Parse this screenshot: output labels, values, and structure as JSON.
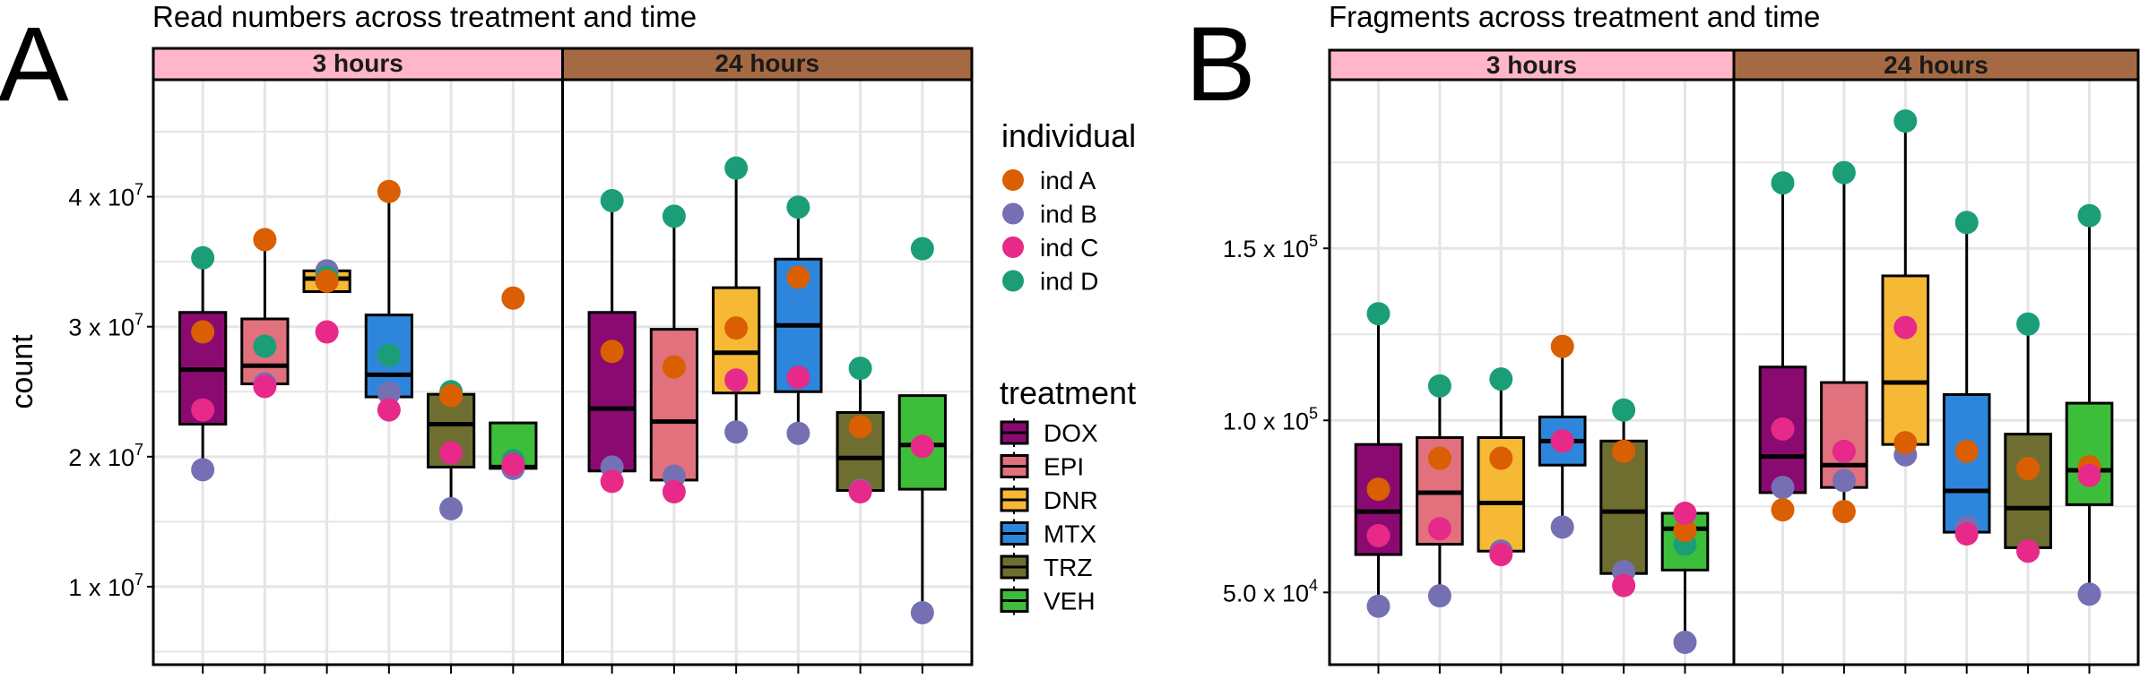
{
  "colors": {
    "DOX": "#8B0A72",
    "EPI": "#E2717E",
    "DNR": "#F5B935",
    "MTX": "#2D86DC",
    "TRZ": "#6E6E30",
    "VEH": "#3DBE3A",
    "ind A": "#D95F02",
    "ind B": "#7570B3",
    "ind C": "#E7298A",
    "ind D": "#1B9E77",
    "strip_3h": "#FFB6C8",
    "strip_24h": "#A56A43",
    "grid": "#E5E5E5"
  },
  "panels": [
    {
      "letter": "A",
      "title": "Read numbers across treatment and time",
      "ylabel": "count"
    },
    {
      "letter": "B",
      "title": "Fragments across treatment and time",
      "ylabel": ""
    }
  ],
  "legend": {
    "individual_title": "individual",
    "individuals": [
      "ind A",
      "ind B",
      "ind C",
      "ind D"
    ],
    "treatment_title": "treatment",
    "treatments": [
      "DOX",
      "EPI",
      "DNR",
      "MTX",
      "TRZ",
      "VEH"
    ]
  },
  "chart_data": [
    {
      "type": "box",
      "title": "Read numbers across treatment and time",
      "ylabel": "count",
      "ylim": [
        4000000,
        49000000
      ],
      "yticks": [
        {
          "value": 10000000,
          "mant": "1 x 10",
          "exp": "7"
        },
        {
          "value": 20000000,
          "mant": "2 x 10",
          "exp": "7"
        },
        {
          "value": 30000000,
          "mant": "3 x 10",
          "exp": "7"
        },
        {
          "value": 40000000,
          "mant": "4 x 10",
          "exp": "7"
        }
      ],
      "facets": [
        "3 hours",
        "24 hours"
      ],
      "treatments": [
        "DOX",
        "EPI",
        "DNR",
        "MTX",
        "TRZ",
        "VEH"
      ],
      "groups": [
        {
          "facet": "3 hours",
          "treatment": "DOX",
          "box": [
            19000000,
            22500000,
            26700000,
            31100000,
            35300000
          ],
          "points": {
            "ind A": 29600000,
            "ind B": 19000000,
            "ind C": 23600000,
            "ind D": 35300000
          }
        },
        {
          "facet": "3 hours",
          "treatment": "EPI",
          "box": [
            25400000,
            25600000,
            27000000,
            30600000,
            36700000
          ],
          "points": {
            "ind A": 36700000,
            "ind B": 25600000,
            "ind C": 25400000,
            "ind D": 28500000
          }
        },
        {
          "facet": "3 hours",
          "treatment": "DNR",
          "box": [
            32700000,
            32700000,
            33700000,
            34300000,
            34300000
          ],
          "points": {
            "ind A": 33500000,
            "ind B": 34300000,
            "ind C": 29600000,
            "ind D": 33800000
          }
        },
        {
          "facet": "3 hours",
          "treatment": "MTX",
          "box": [
            23600000,
            24600000,
            26300000,
            30900000,
            40400000
          ],
          "points": {
            "ind A": 40400000,
            "ind B": 24900000,
            "ind C": 23600000,
            "ind D": 27800000
          }
        },
        {
          "facet": "3 hours",
          "treatment": "TRZ",
          "box": [
            16000000,
            19200000,
            22500000,
            24800000,
            25000000
          ],
          "points": {
            "ind A": 24700000,
            "ind B": 16000000,
            "ind C": 20300000,
            "ind D": 25000000
          }
        },
        {
          "facet": "3 hours",
          "treatment": "VEH",
          "box": [
            19100000,
            19100000,
            19200000,
            22600000,
            22600000
          ],
          "points": {
            "ind A": 32200000,
            "ind B": 19100000,
            "ind C": 19400000,
            "ind D": 19700000
          }
        },
        {
          "facet": "24 hours",
          "treatment": "DOX",
          "box": [
            18100000,
            18900000,
            23700000,
            31100000,
            39700000
          ],
          "points": {
            "ind A": 28100000,
            "ind B": 19200000,
            "ind C": 18100000,
            "ind D": 39700000
          }
        },
        {
          "facet": "24 hours",
          "treatment": "EPI",
          "box": [
            17300000,
            18200000,
            22700000,
            29800000,
            38500000
          ],
          "points": {
            "ind A": 26900000,
            "ind B": 18500000,
            "ind C": 17300000,
            "ind D": 38500000
          }
        },
        {
          "facet": "24 hours",
          "treatment": "DNR",
          "box": [
            21900000,
            24900000,
            28000000,
            33000000,
            42200000
          ],
          "points": {
            "ind A": 29900000,
            "ind B": 21900000,
            "ind C": 25900000,
            "ind D": 42200000
          }
        },
        {
          "facet": "24 hours",
          "treatment": "MTX",
          "box": [
            21800000,
            25000000,
            30100000,
            35200000,
            39200000
          ],
          "points": {
            "ind A": 33800000,
            "ind B": 21800000,
            "ind C": 26100000,
            "ind D": 39200000
          }
        },
        {
          "facet": "24 hours",
          "treatment": "TRZ",
          "box": [
            17300000,
            17400000,
            19900000,
            23400000,
            26800000
          ],
          "points": {
            "ind A": 22300000,
            "ind B": 17400000,
            "ind C": 17300000,
            "ind D": 26800000
          }
        },
        {
          "facet": "24 hours",
          "treatment": "VEH",
          "box": [
            8000000,
            17500000,
            20900000,
            24700000,
            24700000
          ],
          "points": {
            "ind A": 20800000,
            "ind B": 8000000,
            "ind C": 20800000,
            "ind D": 36000000
          }
        }
      ]
    },
    {
      "type": "box",
      "title": "Fragments across treatment and time",
      "ylabel": "",
      "ylim": [
        29000,
        199000
      ],
      "yticks": [
        {
          "value": 50000,
          "mant": "5.0 x 10",
          "exp": "4"
        },
        {
          "value": 100000,
          "mant": "1.0 x 10",
          "exp": "5"
        },
        {
          "value": 150000,
          "mant": "1.5 x 10",
          "exp": "5"
        }
      ],
      "facets": [
        "3 hours",
        "24 hours"
      ],
      "treatments": [
        "DOX",
        "EPI",
        "DNR",
        "MTX",
        "TRZ",
        "VEH"
      ],
      "groups": [
        {
          "facet": "3 hours",
          "treatment": "DOX",
          "box": [
            46000,
            61000,
            73500,
            93000,
            131000
          ],
          "points": {
            "ind A": 80000,
            "ind B": 46000,
            "ind C": 66500,
            "ind D": 131000
          }
        },
        {
          "facet": "3 hours",
          "treatment": "EPI",
          "box": [
            49000,
            64000,
            79000,
            95000,
            110000
          ],
          "points": {
            "ind A": 89000,
            "ind B": 49000,
            "ind C": 68500,
            "ind D": 110000
          }
        },
        {
          "facet": "3 hours",
          "treatment": "DNR",
          "box": [
            61000,
            62000,
            76000,
            95000,
            112000
          ],
          "points": {
            "ind A": 89000,
            "ind B": 62000,
            "ind C": 61000,
            "ind D": 112000
          }
        },
        {
          "facet": "3 hours",
          "treatment": "MTX",
          "box": [
            69000,
            87000,
            94000,
            101000,
            121500
          ],
          "points": {
            "ind A": 121500,
            "ind B": 69000,
            "ind C": 94000,
            "ind D": 94000
          }
        },
        {
          "facet": "3 hours",
          "treatment": "TRZ",
          "box": [
            52000,
            55500,
            73500,
            94000,
            103000
          ],
          "points": {
            "ind A": 91000,
            "ind B": 56000,
            "ind C": 52000,
            "ind D": 103000
          }
        },
        {
          "facet": "3 hours",
          "treatment": "VEH",
          "box": [
            35500,
            56500,
            68500,
            73000,
            73000
          ],
          "points": {
            "ind A": 68000,
            "ind B": 35500,
            "ind C": 73000,
            "ind D": 64000
          }
        },
        {
          "facet": "24 hours",
          "treatment": "DOX",
          "box": [
            74000,
            79000,
            89500,
            115500,
            169000
          ],
          "points": {
            "ind A": 74000,
            "ind B": 80500,
            "ind C": 97500,
            "ind D": 169000
          }
        },
        {
          "facet": "24 hours",
          "treatment": "EPI",
          "box": [
            73500,
            80500,
            87000,
            111000,
            172000
          ],
          "points": {
            "ind A": 73500,
            "ind B": 82500,
            "ind C": 91000,
            "ind D": 172000
          }
        },
        {
          "facet": "24 hours",
          "treatment": "DNR",
          "box": [
            90000,
            93000,
            111000,
            142000,
            187000
          ],
          "points": {
            "ind A": 93500,
            "ind B": 90000,
            "ind C": 127000,
            "ind D": 187000
          }
        },
        {
          "facet": "24 hours",
          "treatment": "MTX",
          "box": [
            67000,
            67500,
            79500,
            107500,
            157500
          ],
          "points": {
            "ind A": 91000,
            "ind B": 69000,
            "ind C": 67000,
            "ind D": 157500
          }
        },
        {
          "facet": "24 hours",
          "treatment": "TRZ",
          "box": [
            62000,
            63000,
            74500,
            96000,
            128000
          ],
          "points": {
            "ind A": 86000,
            "ind B": 62000,
            "ind C": 62000,
            "ind D": 128000
          }
        },
        {
          "facet": "24 hours",
          "treatment": "VEH",
          "box": [
            49500,
            75500,
            85500,
            105000,
            159500
          ],
          "points": {
            "ind A": 86500,
            "ind B": 49500,
            "ind C": 84000,
            "ind D": 159500
          }
        }
      ]
    }
  ]
}
